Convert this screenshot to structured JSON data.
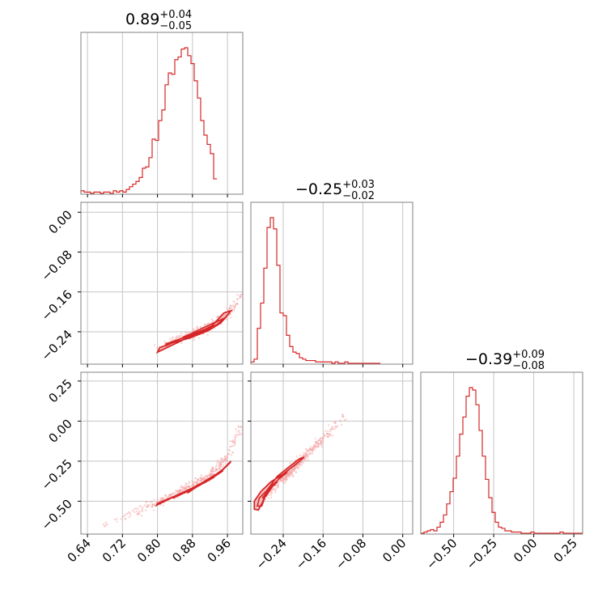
{
  "chart_data": {
    "type": "corner",
    "title": "",
    "grid": true,
    "colors": {
      "line": "#d62728",
      "fill": "#f2b8b8",
      "scatter": "#f4a6a6",
      "frame": "#808080",
      "grid": "#c4c4c4"
    },
    "parameters": [
      {
        "median": "0.89",
        "plus": "+0.04",
        "minus": "−0.05",
        "range": [
          0.625,
          0.995
        ],
        "ticks": [
          0.64,
          0.72,
          0.8,
          0.88,
          0.96
        ],
        "tick_labels": [
          "0.64",
          "0.72",
          "0.80",
          "0.88",
          "0.96"
        ]
      },
      {
        "median": "−0.25",
        "plus": "+0.03",
        "minus": "−0.02",
        "range": [
          -0.305,
          0.02
        ],
        "ticks": [
          -0.24,
          -0.16,
          -0.08,
          0.0
        ],
        "tick_labels": [
          "−0.24",
          "−0.16",
          "−0.08",
          "0.00"
        ]
      },
      {
        "median": "−0.39",
        "plus": "+0.09",
        "minus": "−0.08",
        "range": [
          -0.705,
          0.305
        ],
        "ticks": [
          -0.5,
          -0.25,
          0.0,
          0.25
        ],
        "tick_labels": [
          "−0.50",
          "−0.25",
          "0.00",
          "0.25"
        ]
      }
    ],
    "histograms": [
      {
        "param": 0,
        "bin_start": 0.625,
        "bin_width": 0.0074,
        "counts": [
          2,
          1,
          1,
          0,
          1,
          1,
          0,
          1,
          1,
          0,
          2,
          1,
          2,
          1,
          3,
          5,
          7,
          9,
          12,
          19,
          20,
          27,
          41,
          40,
          55,
          63,
          82,
          91,
          90,
          101,
          103,
          109,
          110,
          104,
          98,
          85,
          72,
          55,
          44,
          37,
          30,
          11
        ]
      },
      {
        "param": 1,
        "bin_start": -0.305,
        "bin_width": 0.0065,
        "counts": [
          1,
          3,
          25,
          43,
          68,
          97,
          104,
          96,
          70,
          36,
          34,
          20,
          12,
          8,
          7,
          4,
          3,
          2,
          2,
          2,
          1,
          1,
          1,
          1,
          1,
          0,
          1,
          0,
          0,
          1,
          0,
          0,
          0,
          0,
          0,
          0,
          0,
          0,
          0,
          0
        ]
      },
      {
        "param": 2,
        "bin_start": -0.705,
        "bin_width": 0.0202,
        "counts": [
          0,
          1,
          2,
          3,
          2,
          5,
          9,
          15,
          24,
          34,
          45,
          63,
          81,
          95,
          112,
          119,
          117,
          105,
          84,
          63,
          44,
          29,
          17,
          9,
          5,
          4,
          2,
          2,
          1,
          1,
          1,
          0,
          0,
          0,
          1,
          0,
          0,
          0,
          0,
          0,
          0,
          0,
          0,
          1,
          0,
          0,
          0,
          0,
          0,
          0
        ]
      }
    ],
    "joint": [
      {
        "x_param": 0,
        "y_param": 1,
        "trend": [
          [
            0.8,
            -0.272
          ],
          [
            0.84,
            -0.258
          ],
          [
            0.88,
            -0.245
          ],
          [
            0.92,
            -0.23
          ],
          [
            0.96,
            -0.205
          ],
          [
            0.99,
            -0.17
          ]
        ],
        "levels": [
          {
            "kind": "fill",
            "points": [
              [
                0.805,
                -0.272
              ],
              [
                0.835,
                -0.262
              ],
              [
                0.875,
                -0.252
              ],
              [
                0.915,
                -0.238
              ],
              [
                0.945,
                -0.222
              ],
              [
                0.968,
                -0.198
              ],
              [
                0.952,
                -0.202
              ],
              [
                0.925,
                -0.228
              ],
              [
                0.89,
                -0.243
              ],
              [
                0.845,
                -0.262
              ],
              [
                0.8,
                -0.281
              ]
            ]
          },
          {
            "kind": "line",
            "points": [
              [
                0.82,
                -0.264
              ],
              [
                0.86,
                -0.252
              ],
              [
                0.9,
                -0.242
              ],
              [
                0.935,
                -0.226
              ],
              [
                0.955,
                -0.212
              ],
              [
                0.94,
                -0.218
              ],
              [
                0.9,
                -0.234
              ],
              [
                0.86,
                -0.251
              ],
              [
                0.82,
                -0.268
              ]
            ]
          },
          {
            "kind": "line",
            "points": [
              [
                0.86,
                -0.25
              ],
              [
                0.9,
                -0.238
              ],
              [
                0.93,
                -0.228
              ],
              [
                0.9,
                -0.24
              ],
              [
                0.86,
                -0.253
              ]
            ]
          }
        ]
      },
      {
        "x_param": 0,
        "y_param": 2,
        "trend": [
          [
            0.68,
            -0.65
          ],
          [
            0.74,
            -0.58
          ],
          [
            0.8,
            -0.51
          ],
          [
            0.86,
            -0.43
          ],
          [
            0.92,
            -0.34
          ],
          [
            0.96,
            -0.22
          ],
          [
            0.99,
            -0.05
          ]
        ],
        "levels": [
          {
            "kind": "fill",
            "points": [
              [
                0.8,
                -0.515
              ],
              [
                0.84,
                -0.468
              ],
              [
                0.88,
                -0.418
              ],
              [
                0.92,
                -0.36
              ],
              [
                0.95,
                -0.3
              ],
              [
                0.968,
                -0.25
              ],
              [
                0.965,
                -0.262
              ],
              [
                0.945,
                -0.315
              ],
              [
                0.91,
                -0.375
              ],
              [
                0.87,
                -0.432
              ],
              [
                0.83,
                -0.482
              ],
              [
                0.798,
                -0.525
              ]
            ]
          },
          {
            "kind": "line",
            "points": [
              [
                0.84,
                -0.475
              ],
              [
                0.88,
                -0.425
              ],
              [
                0.92,
                -0.365
              ],
              [
                0.95,
                -0.31
              ],
              [
                0.94,
                -0.322
              ],
              [
                0.9,
                -0.388
              ],
              [
                0.86,
                -0.447
              ],
              [
                0.835,
                -0.482
              ]
            ]
          },
          {
            "kind": "line",
            "points": [
              [
                0.87,
                -0.44
              ],
              [
                0.91,
                -0.38
              ],
              [
                0.93,
                -0.35
              ],
              [
                0.9,
                -0.392
              ],
              [
                0.87,
                -0.447
              ]
            ]
          }
        ]
      },
      {
        "x_param": 1,
        "y_param": 2,
        "trend": [
          [
            -0.29,
            -0.52
          ],
          [
            -0.27,
            -0.45
          ],
          [
            -0.25,
            -0.39
          ],
          [
            -0.23,
            -0.33
          ],
          [
            -0.21,
            -0.26
          ],
          [
            -0.18,
            -0.17
          ],
          [
            -0.15,
            -0.08
          ],
          [
            -0.12,
            0.02
          ]
        ],
        "levels": [
          {
            "kind": "fill",
            "points": [
              [
                -0.298,
                -0.55
              ],
              [
                -0.298,
                -0.5
              ],
              [
                -0.285,
                -0.44
              ],
              [
                -0.265,
                -0.38
              ],
              [
                -0.24,
                -0.33
              ],
              [
                -0.215,
                -0.27
              ],
              [
                -0.198,
                -0.225
              ],
              [
                -0.208,
                -0.236
              ],
              [
                -0.228,
                -0.285
              ],
              [
                -0.252,
                -0.345
              ],
              [
                -0.272,
                -0.43
              ],
              [
                -0.282,
                -0.51
              ],
              [
                -0.29,
                -0.555
              ]
            ]
          },
          {
            "kind": "line",
            "points": [
              [
                -0.292,
                -0.53
              ],
              [
                -0.288,
                -0.48
              ],
              [
                -0.272,
                -0.43
              ],
              [
                -0.252,
                -0.37
              ],
              [
                -0.232,
                -0.32
              ],
              [
                -0.24,
                -0.33
              ],
              [
                -0.258,
                -0.39
              ],
              [
                -0.275,
                -0.46
              ],
              [
                -0.283,
                -0.53
              ]
            ]
          },
          {
            "kind": "line",
            "points": [
              [
                -0.282,
                -0.48
              ],
              [
                -0.27,
                -0.43
              ],
              [
                -0.252,
                -0.38
              ],
              [
                -0.262,
                -0.41
              ],
              [
                -0.275,
                -0.47
              ]
            ]
          }
        ]
      }
    ]
  }
}
